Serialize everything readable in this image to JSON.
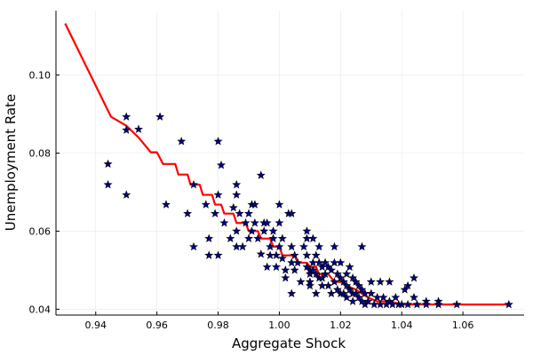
{
  "chart_data": {
    "type": "scatter",
    "title": "",
    "xlabel": "Aggregate Shock",
    "ylabel": "Unemployment Rate",
    "xlim": [
      0.927,
      1.08
    ],
    "ylim": [
      0.0385,
      0.1165
    ],
    "x_ticks": [
      0.94,
      0.96,
      0.98,
      1.0,
      1.02,
      1.04,
      1.06
    ],
    "x_tick_labels": [
      "0.94",
      "0.96",
      "0.98",
      "1.00",
      "1.02",
      "1.04",
      "1.06"
    ],
    "y_ticks": [
      0.04,
      0.06,
      0.08,
      0.1
    ],
    "y_tick_labels": [
      "0.04",
      "0.06",
      "0.08",
      "0.10"
    ],
    "grid": true,
    "legend": "none",
    "colors": {
      "scatter_fill": "#00008b",
      "scatter_stroke": "#000000",
      "line": "#ff0000",
      "grid": "#e8e8e8",
      "axis": "#000000"
    },
    "series": [
      {
        "type": "scatter",
        "marker": "star",
        "points": [
          [
            0.944,
            0.0772
          ],
          [
            0.944,
            0.0719
          ],
          [
            0.95,
            0.0893
          ],
          [
            0.95,
            0.0859
          ],
          [
            0.95,
            0.0693
          ],
          [
            0.954,
            0.0861
          ],
          [
            0.961,
            0.0893
          ],
          [
            0.963,
            0.0668
          ],
          [
            0.968,
            0.083
          ],
          [
            0.97,
            0.0645
          ],
          [
            0.972,
            0.056
          ],
          [
            0.972,
            0.0719
          ],
          [
            0.976,
            0.0668
          ],
          [
            0.977,
            0.0538
          ],
          [
            0.977,
            0.0581
          ],
          [
            0.979,
            0.0645
          ],
          [
            0.98,
            0.083
          ],
          [
            0.98,
            0.0693
          ],
          [
            0.98,
            0.0538
          ],
          [
            0.981,
            0.0769
          ],
          [
            0.982,
            0.0621
          ],
          [
            0.984,
            0.0581
          ],
          [
            0.985,
            0.066
          ],
          [
            0.986,
            0.0719
          ],
          [
            0.986,
            0.0693
          ],
          [
            0.986,
            0.06
          ],
          [
            0.986,
            0.056
          ],
          [
            0.987,
            0.0645
          ],
          [
            0.988,
            0.056
          ],
          [
            0.989,
            0.0621
          ],
          [
            0.99,
            0.0645
          ],
          [
            0.99,
            0.0581
          ],
          [
            0.991,
            0.0668
          ],
          [
            0.991,
            0.06
          ],
          [
            0.992,
            0.0668
          ],
          [
            0.992,
            0.0621
          ],
          [
            0.993,
            0.0581
          ],
          [
            0.994,
            0.0743
          ],
          [
            0.994,
            0.0541
          ],
          [
            0.995,
            0.0621
          ],
          [
            0.995,
            0.06
          ],
          [
            0.996,
            0.0621
          ],
          [
            0.996,
            0.0508
          ],
          [
            0.997,
            0.056
          ],
          [
            0.997,
            0.0538
          ],
          [
            0.998,
            0.06
          ],
          [
            0.998,
            0.0581
          ],
          [
            0.999,
            0.0538
          ],
          [
            0.999,
            0.0508
          ],
          [
            1.0,
            0.0668
          ],
          [
            1.0,
            0.0621
          ],
          [
            1.0,
            0.056
          ],
          [
            1.001,
            0.0581
          ],
          [
            1.001,
            0.053
          ],
          [
            1.002,
            0.05
          ],
          [
            1.002,
            0.048
          ],
          [
            1.003,
            0.0645
          ],
          [
            1.004,
            0.0645
          ],
          [
            1.004,
            0.056
          ],
          [
            1.004,
            0.0519
          ],
          [
            1.004,
            0.044
          ],
          [
            1.005,
            0.0538
          ],
          [
            1.005,
            0.05
          ],
          [
            1.006,
            0.0519
          ],
          [
            1.007,
            0.047
          ],
          [
            1.008,
            0.056
          ],
          [
            1.009,
            0.06
          ],
          [
            1.009,
            0.0581
          ],
          [
            1.009,
            0.0538
          ],
          [
            1.009,
            0.0508
          ],
          [
            1.01,
            0.05
          ],
          [
            1.01,
            0.049
          ],
          [
            1.01,
            0.047
          ],
          [
            1.01,
            0.046
          ],
          [
            1.011,
            0.0581
          ],
          [
            1.011,
            0.0519
          ],
          [
            1.011,
            0.05
          ],
          [
            1.012,
            0.0538
          ],
          [
            1.012,
            0.049
          ],
          [
            1.012,
            0.044
          ],
          [
            1.013,
            0.056
          ],
          [
            1.013,
            0.0519
          ],
          [
            1.013,
            0.048
          ],
          [
            1.014,
            0.0508
          ],
          [
            1.014,
            0.048
          ],
          [
            1.014,
            0.046
          ],
          [
            1.015,
            0.0519
          ],
          [
            1.015,
            0.049
          ],
          [
            1.016,
            0.0508
          ],
          [
            1.016,
            0.046
          ],
          [
            1.017,
            0.05
          ],
          [
            1.017,
            0.044
          ],
          [
            1.018,
            0.056
          ],
          [
            1.018,
            0.0519
          ],
          [
            1.018,
            0.047
          ],
          [
            1.019,
            0.049
          ],
          [
            1.019,
            0.045
          ],
          [
            1.02,
            0.0519
          ],
          [
            1.02,
            0.048
          ],
          [
            1.02,
            0.044
          ],
          [
            1.021,
            0.047
          ],
          [
            1.021,
            0.044
          ],
          [
            1.022,
            0.049
          ],
          [
            1.022,
            0.046
          ],
          [
            1.022,
            0.043
          ],
          [
            1.023,
            0.0508
          ],
          [
            1.023,
            0.045
          ],
          [
            1.024,
            0.048
          ],
          [
            1.024,
            0.044
          ],
          [
            1.024,
            0.042
          ],
          [
            1.025,
            0.047
          ],
          [
            1.025,
            0.044
          ],
          [
            1.026,
            0.046
          ],
          [
            1.026,
            0.043
          ],
          [
            1.027,
            0.056
          ],
          [
            1.027,
            0.045
          ],
          [
            1.027,
            0.042
          ],
          [
            1.028,
            0.044
          ],
          [
            1.028,
            0.0412
          ],
          [
            1.029,
            0.042
          ],
          [
            1.03,
            0.047
          ],
          [
            1.03,
            0.044
          ],
          [
            1.031,
            0.0412
          ],
          [
            1.032,
            0.043
          ],
          [
            1.033,
            0.047
          ],
          [
            1.033,
            0.0412
          ],
          [
            1.034,
            0.043
          ],
          [
            1.035,
            0.0412
          ],
          [
            1.036,
            0.047
          ],
          [
            1.036,
            0.042
          ],
          [
            1.037,
            0.0412
          ],
          [
            1.038,
            0.043
          ],
          [
            1.039,
            0.0412
          ],
          [
            1.04,
            0.0412
          ],
          [
            1.041,
            0.045
          ],
          [
            1.042,
            0.046
          ],
          [
            1.042,
            0.0412
          ],
          [
            1.044,
            0.048
          ],
          [
            1.044,
            0.043
          ],
          [
            1.045,
            0.0412
          ],
          [
            1.048,
            0.042
          ],
          [
            1.048,
            0.0412
          ],
          [
            1.052,
            0.042
          ],
          [
            1.052,
            0.0412
          ],
          [
            1.058,
            0.0412
          ],
          [
            1.075,
            0.0412
          ]
        ]
      },
      {
        "type": "line",
        "points": [
          [
            0.93,
            0.1132
          ],
          [
            0.945,
            0.0893
          ],
          [
            0.95,
            0.087
          ],
          [
            0.954,
            0.084
          ],
          [
            0.958,
            0.0802
          ],
          [
            0.96,
            0.0802
          ],
          [
            0.962,
            0.0772
          ],
          [
            0.966,
            0.0772
          ],
          [
            0.967,
            0.0745
          ],
          [
            0.97,
            0.0745
          ],
          [
            0.971,
            0.0719
          ],
          [
            0.974,
            0.0719
          ],
          [
            0.975,
            0.0693
          ],
          [
            0.978,
            0.0693
          ],
          [
            0.979,
            0.0668
          ],
          [
            0.981,
            0.0668
          ],
          [
            0.982,
            0.0645
          ],
          [
            0.985,
            0.0645
          ],
          [
            0.986,
            0.0621
          ],
          [
            0.989,
            0.0621
          ],
          [
            0.99,
            0.06
          ],
          [
            0.993,
            0.06
          ],
          [
            0.994,
            0.0581
          ],
          [
            0.997,
            0.0581
          ],
          [
            0.998,
            0.056
          ],
          [
            1.0,
            0.056
          ],
          [
            1.001,
            0.0538
          ],
          [
            1.005,
            0.0538
          ],
          [
            1.006,
            0.0519
          ],
          [
            1.009,
            0.0519
          ],
          [
            1.01,
            0.0508
          ],
          [
            1.012,
            0.0508
          ],
          [
            1.013,
            0.049
          ],
          [
            1.016,
            0.049
          ],
          [
            1.017,
            0.048
          ],
          [
            1.018,
            0.047
          ],
          [
            1.021,
            0.047
          ],
          [
            1.022,
            0.046
          ],
          [
            1.025,
            0.045
          ],
          [
            1.027,
            0.044
          ],
          [
            1.029,
            0.043
          ],
          [
            1.032,
            0.042
          ],
          [
            1.036,
            0.042
          ],
          [
            1.04,
            0.0412
          ],
          [
            1.045,
            0.0412
          ],
          [
            1.05,
            0.0412
          ],
          [
            1.06,
            0.0412
          ],
          [
            1.075,
            0.0412
          ]
        ]
      }
    ]
  }
}
